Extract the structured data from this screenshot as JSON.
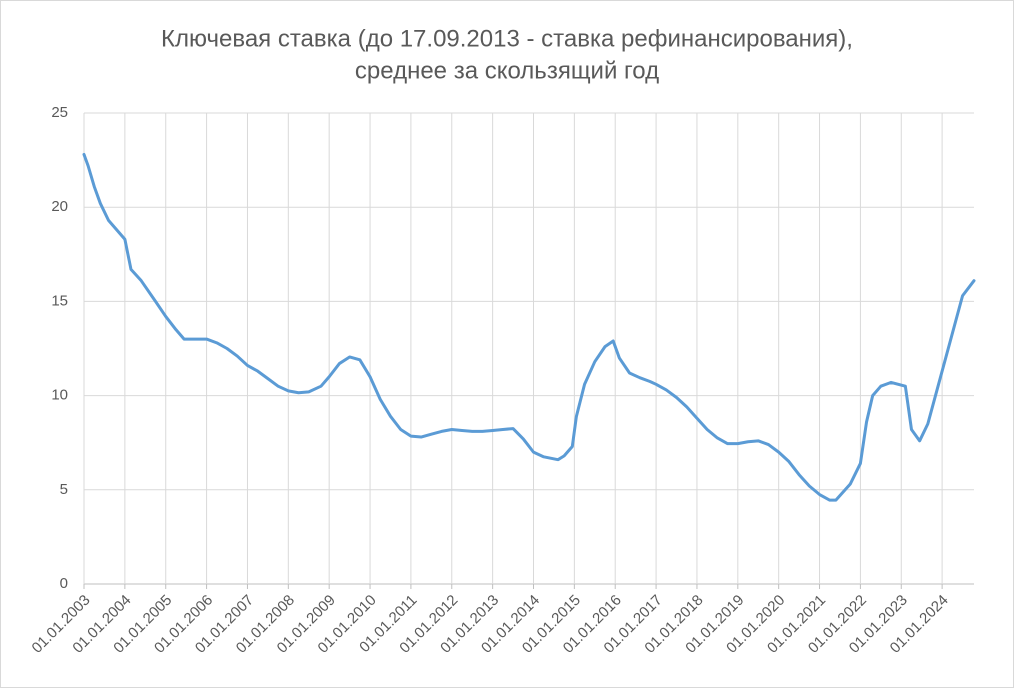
{
  "chart_data": {
    "type": "line",
    "title": [
      "Ключевая ставка (до 17.09.2013 - ставка рефинансирования),",
      "среднее за скользящий год"
    ],
    "color": "#5b9bd5",
    "grid": true,
    "xlim": [
      2003,
      2024.78
    ],
    "ylim": [
      0,
      25
    ],
    "yticks": [
      0,
      5,
      10,
      15,
      20,
      25
    ],
    "xticks": [
      {
        "value": 2003,
        "label": "01.01.2003"
      },
      {
        "value": 2004,
        "label": "01.01.2004"
      },
      {
        "value": 2005,
        "label": "01.01.2005"
      },
      {
        "value": 2006,
        "label": "01.01.2006"
      },
      {
        "value": 2007,
        "label": "01.01.2007"
      },
      {
        "value": 2008,
        "label": "01.01.2008"
      },
      {
        "value": 2009,
        "label": "01.01.2009"
      },
      {
        "value": 2010,
        "label": "01.01.2010"
      },
      {
        "value": 2011,
        "label": "01.01.2011"
      },
      {
        "value": 2012,
        "label": "01.01.2012"
      },
      {
        "value": 2013,
        "label": "01.01.2013"
      },
      {
        "value": 2014,
        "label": "01.01.2014"
      },
      {
        "value": 2015,
        "label": "01.01.2015"
      },
      {
        "value": 2016,
        "label": "01.01.2016"
      },
      {
        "value": 2017,
        "label": "01.01.2017"
      },
      {
        "value": 2018,
        "label": "01.01.2018"
      },
      {
        "value": 2019,
        "label": "01.01.2019"
      },
      {
        "value": 2020,
        "label": "01.01.2020"
      },
      {
        "value": 2021,
        "label": "01.01.2021"
      },
      {
        "value": 2022,
        "label": "01.01.2022"
      },
      {
        "value": 2023,
        "label": "01.01.2023"
      },
      {
        "value": 2024,
        "label": "01.01.2024"
      }
    ],
    "x": [
      2003,
      2003.1,
      2003.25,
      2003.4,
      2003.6,
      2004,
      2004.15,
      2004.4,
      2004.75,
      2005,
      2005.25,
      2005.45,
      2006,
      2006.25,
      2006.5,
      2006.75,
      2007,
      2007.25,
      2007.5,
      2007.75,
      2008,
      2008.25,
      2008.5,
      2008.8,
      2009,
      2009.25,
      2009.5,
      2009.75,
      2010,
      2010.25,
      2010.5,
      2010.75,
      2011,
      2011.25,
      2011.5,
      2011.75,
      2012,
      2012.25,
      2012.5,
      2012.75,
      2013,
      2013.25,
      2013.5,
      2013.75,
      2014,
      2014.25,
      2014.6,
      2014.75,
      2014.95,
      2015.05,
      2015.25,
      2015.5,
      2015.75,
      2015.95,
      2016.1,
      2016.35,
      2016.6,
      2016.85,
      2017,
      2017.25,
      2017.5,
      2017.75,
      2018,
      2018.25,
      2018.5,
      2018.75,
      2019,
      2019.25,
      2019.5,
      2019.75,
      2020,
      2020.25,
      2020.5,
      2020.75,
      2021,
      2021.25,
      2021.4,
      2021.75,
      2022,
      2022.15,
      2022.3,
      2022.5,
      2022.75,
      2023.1,
      2023.25,
      2023.45,
      2023.65,
      2023.9,
      2024.2,
      2024.5,
      2024.78
    ],
    "values": [
      22.8,
      22.2,
      21.1,
      20.2,
      19.3,
      18.3,
      16.7,
      16.1,
      15.0,
      14.2,
      13.5,
      13.0,
      13.0,
      12.8,
      12.5,
      12.1,
      11.6,
      11.3,
      10.9,
      10.5,
      10.25,
      10.15,
      10.2,
      10.5,
      11.0,
      11.7,
      12.05,
      11.9,
      11.0,
      9.8,
      8.9,
      8.2,
      7.85,
      7.8,
      7.95,
      8.1,
      8.2,
      8.15,
      8.1,
      8.1,
      8.15,
      8.2,
      8.25,
      7.7,
      7.0,
      6.75,
      6.6,
      6.8,
      7.3,
      8.9,
      10.6,
      11.8,
      12.6,
      12.9,
      12.0,
      11.2,
      10.95,
      10.75,
      10.6,
      10.3,
      9.9,
      9.4,
      8.8,
      8.2,
      7.75,
      7.45,
      7.45,
      7.55,
      7.6,
      7.4,
      7.0,
      6.5,
      5.8,
      5.2,
      4.75,
      4.45,
      4.45,
      5.3,
      6.4,
      8.6,
      10.0,
      10.5,
      10.7,
      10.5,
      8.2,
      7.6,
      8.5,
      10.5,
      12.9,
      15.3,
      16.1
    ]
  }
}
